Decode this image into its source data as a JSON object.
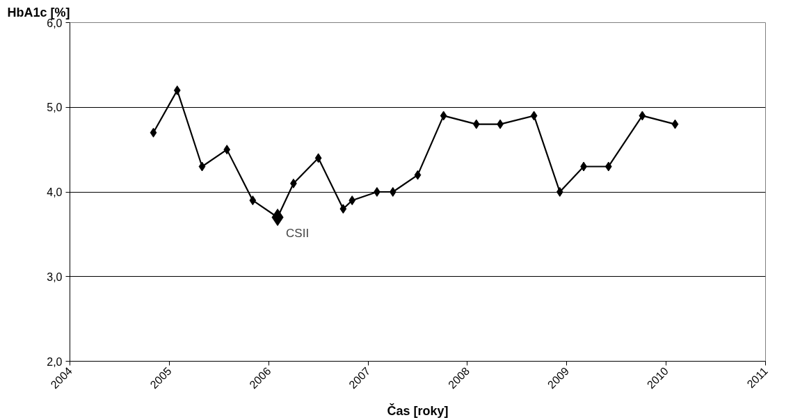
{
  "chart_data": {
    "type": "line",
    "xlabel": "Čas [roky]",
    "ylabel": "HbA1c [%]",
    "x": [
      2004.84,
      2005.08,
      2005.33,
      2005.58,
      2005.84,
      2006.09,
      2006.25,
      2006.5,
      2006.75,
      2006.84,
      2007.09,
      2007.25,
      2007.5,
      2007.76,
      2008.09,
      2008.33,
      2008.67,
      2008.93,
      2009.17,
      2009.42,
      2009.76,
      2010.09
    ],
    "series": [
      {
        "color": "#000000",
        "values": [
          4.7,
          5.2,
          4.3,
          4.5,
          3.9,
          3.7,
          4.1,
          4.4,
          3.8,
          3.9,
          4.0,
          4.0,
          4.2,
          4.9,
          4.8,
          4.8,
          4.9,
          4.0,
          4.3,
          4.3,
          4.9,
          4.8
        ]
      },
      {
        "type": "scatter",
        "color": "#000000",
        "x": [
          2006.09
        ],
        "values": [
          3.7
        ]
      }
    ],
    "marker": "diamond",
    "line_style": "solid",
    "grid": "y",
    "xlim": [
      2004,
      2011
    ],
    "xticks": [
      2004,
      2005,
      2006,
      2007,
      2008,
      2009,
      2010,
      2011
    ],
    "ylim": [
      2,
      6
    ],
    "yticks": [
      {
        "value": 2,
        "label": "2,0"
      },
      {
        "value": 3,
        "label": "3,0"
      },
      {
        "value": 4,
        "label": "4,0"
      },
      {
        "value": 5,
        "label": "5,0"
      },
      {
        "value": 6,
        "label": "6,0"
      }
    ],
    "annotations": [
      {
        "text": "CSII",
        "x": 2006.09,
        "y": 3.7
      }
    ]
  }
}
